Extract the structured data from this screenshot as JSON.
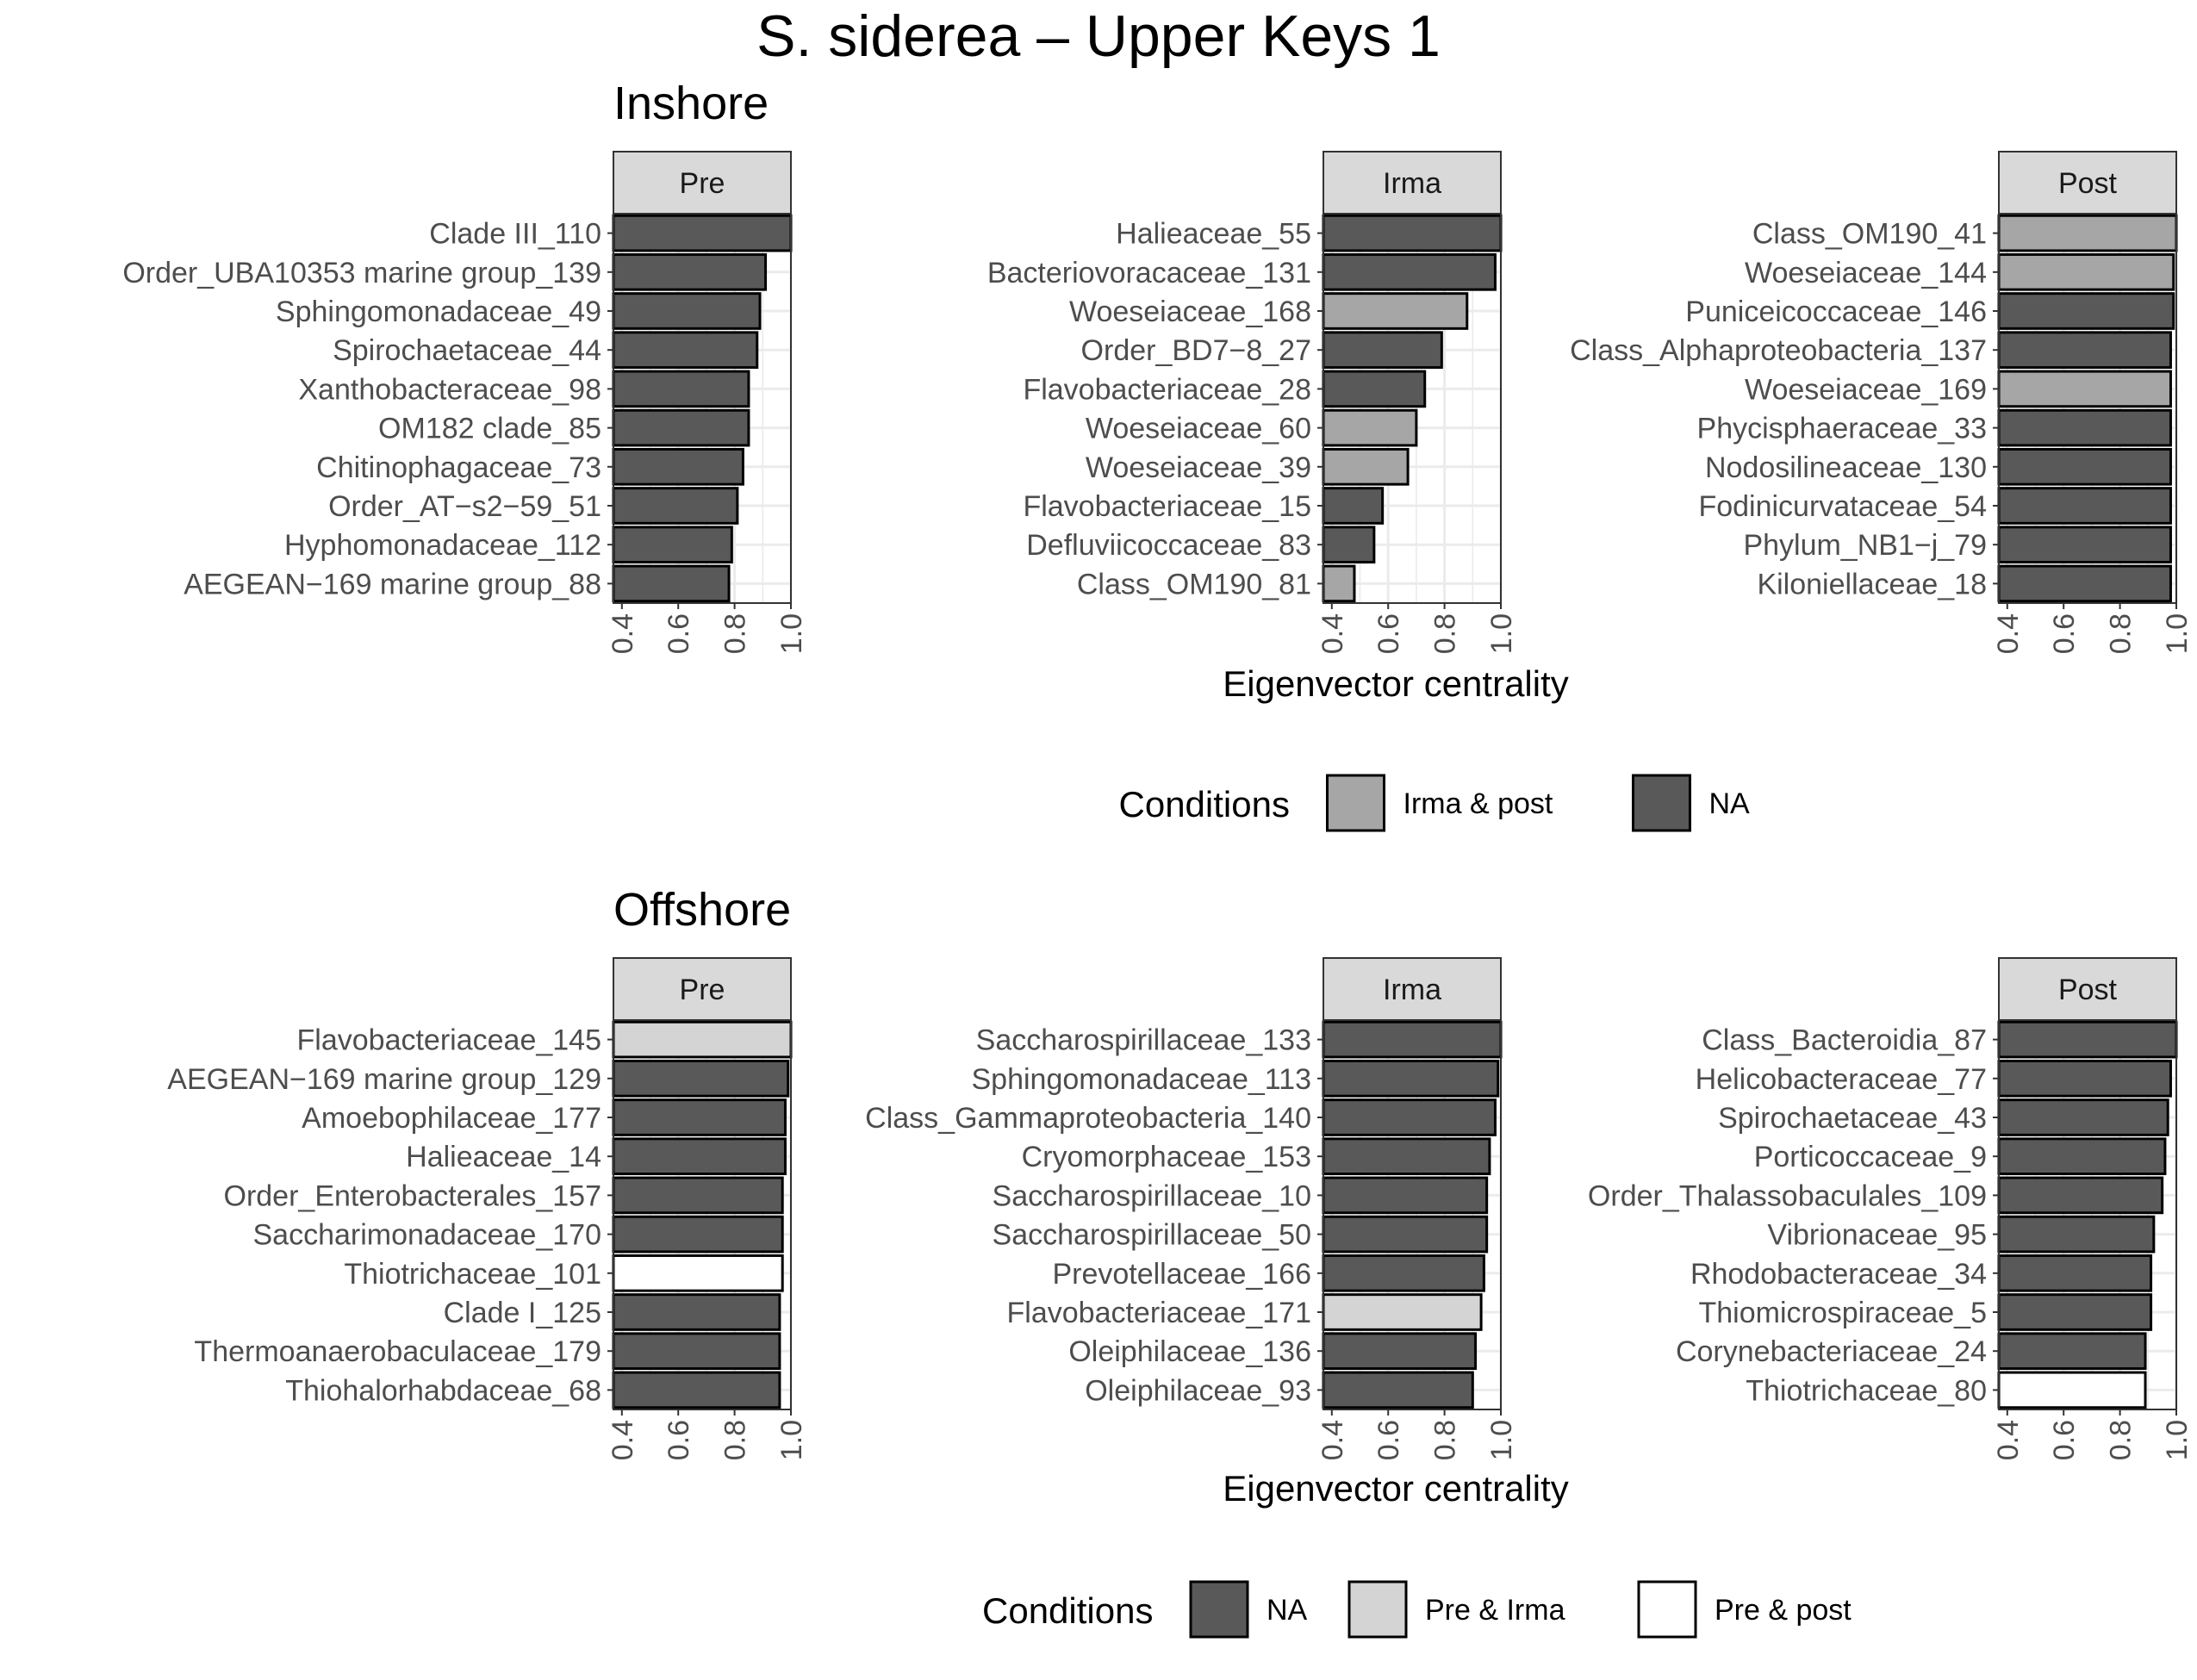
{
  "title": "S. siderea – Upper Keys 1",
  "colors": {
    "NA": "#595959",
    "Irma & post": "#a6a6a6",
    "Pre & Irma": "#d4d4d4",
    "Pre & post": "#ffffff",
    "strip_fill": "#d9d9d9",
    "grid": "#ebebeb",
    "axis_text": "#4d4d4d"
  },
  "chart_data": [
    {
      "section": "Inshore",
      "type": "bar",
      "orientation": "horizontal",
      "xlabel": "Eigenvector centrality",
      "xlim": [
        0.37,
        1.0
      ],
      "xticks": [
        "0.4",
        "0.6",
        "0.8",
        "1.0"
      ],
      "grid": true,
      "legend": {
        "position": "bottom",
        "title": "Conditions",
        "entries": [
          "Irma & post",
          "NA"
        ]
      },
      "panels": [
        {
          "strip": "Pre",
          "categories": [
            "Clade III_110",
            "Order_UBA10353 marine group_139",
            "Sphingomonadaceae_49",
            "Spirochaetaceae_44",
            "Xanthobacteraceae_98",
            "OM182 clade_85",
            "Chitinophagaceae_73",
            "Order_AT−s2−59_51",
            "Hyphomonadaceae_112",
            "AEGEAN−169 marine group_88"
          ],
          "values": [
            1.0,
            0.91,
            0.89,
            0.88,
            0.85,
            0.85,
            0.83,
            0.81,
            0.79,
            0.78
          ],
          "conditions": [
            "NA",
            "NA",
            "NA",
            "NA",
            "NA",
            "NA",
            "NA",
            "NA",
            "NA",
            "NA"
          ]
        },
        {
          "strip": "Irma",
          "categories": [
            "Halieaceae_55",
            "Bacteriovoracaceae_131",
            "Woeseiaceae_168",
            "Order_BD7−8_27",
            "Flavobacteriaceae_28",
            "Woeseiaceae_60",
            "Woeseiaceae_39",
            "Flavobacteriaceae_15",
            "Defluviicoccaceae_83",
            "Class_OM190_81"
          ],
          "values": [
            1.0,
            0.98,
            0.88,
            0.79,
            0.73,
            0.7,
            0.67,
            0.58,
            0.55,
            0.48
          ],
          "conditions": [
            "NA",
            "NA",
            "Irma & post",
            "NA",
            "NA",
            "Irma & post",
            "Irma & post",
            "NA",
            "NA",
            "Irma & post"
          ]
        },
        {
          "strip": "Post",
          "categories": [
            "Class_OM190_41",
            "Woeseiaceae_144",
            "Puniceicoccaceae_146",
            "Class_Alphaproteobacteria_137",
            "Woeseiaceae_169",
            "Phycisphaeraceae_33",
            "Nodosilineaceae_130",
            "Fodinicurvataceae_54",
            "Phylum_NB1−j_79",
            "Kiloniellaceae_18"
          ],
          "values": [
            1.0,
            0.99,
            0.99,
            0.98,
            0.98,
            0.98,
            0.98,
            0.98,
            0.98,
            0.98
          ],
          "conditions": [
            "Irma & post",
            "Irma & post",
            "NA",
            "NA",
            "Irma & post",
            "NA",
            "NA",
            "NA",
            "NA",
            "NA"
          ]
        }
      ]
    },
    {
      "section": "Offshore",
      "type": "bar",
      "orientation": "horizontal",
      "xlabel": "Eigenvector centrality",
      "xlim": [
        0.37,
        1.0
      ],
      "xticks": [
        "0.4",
        "0.6",
        "0.8",
        "1.0"
      ],
      "grid": true,
      "legend": {
        "position": "bottom",
        "title": "Conditions",
        "entries": [
          "NA",
          "Pre & Irma",
          "Pre & post"
        ]
      },
      "panels": [
        {
          "strip": "Pre",
          "categories": [
            "Flavobacteriaceae_145",
            "AEGEAN−169 marine group_129",
            "Amoebophilaceae_177",
            "Halieaceae_14",
            "Order_Enterobacterales_157",
            "Saccharimonadaceae_170",
            "Thiotrichaceae_101",
            "Clade I_125",
            "Thermoanaerobaculaceae_179",
            "Thiohalorhabdaceae_68"
          ],
          "values": [
            1.0,
            0.99,
            0.98,
            0.98,
            0.97,
            0.97,
            0.97,
            0.96,
            0.96,
            0.96
          ],
          "conditions": [
            "Pre & Irma",
            "NA",
            "NA",
            "NA",
            "NA",
            "NA",
            "Pre & post",
            "NA",
            "NA",
            "NA"
          ]
        },
        {
          "strip": "Irma",
          "categories": [
            "Saccharospirillaceae_133",
            "Sphingomonadaceae_113",
            "Class_Gammaproteobacteria_140",
            "Cryomorphaceae_153",
            "Saccharospirillaceae_10",
            "Saccharospirillaceae_50",
            "Prevotellaceae_166",
            "Flavobacteriaceae_171",
            "Oleiphilaceae_136",
            "Oleiphilaceae_93"
          ],
          "values": [
            1.0,
            0.99,
            0.98,
            0.96,
            0.95,
            0.95,
            0.94,
            0.93,
            0.91,
            0.9
          ],
          "conditions": [
            "NA",
            "NA",
            "NA",
            "NA",
            "NA",
            "NA",
            "NA",
            "Pre & Irma",
            "NA",
            "NA"
          ]
        },
        {
          "strip": "Post",
          "categories": [
            "Class_Bacteroidia_87",
            "Helicobacteraceae_77",
            "Spirochaetaceae_43",
            "Porticoccaceae_9",
            "Order_Thalassobaculales_109",
            "Vibrionaceae_95",
            "Rhodobacteraceae_34",
            "Thiomicrospiraceae_5",
            "Corynebacteriaceae_24",
            "Thiotrichaceae_80"
          ],
          "values": [
            1.0,
            0.98,
            0.97,
            0.96,
            0.95,
            0.92,
            0.91,
            0.91,
            0.89,
            0.89
          ],
          "conditions": [
            "NA",
            "NA",
            "NA",
            "NA",
            "NA",
            "NA",
            "NA",
            "NA",
            "NA",
            "Pre & post"
          ]
        }
      ]
    }
  ]
}
